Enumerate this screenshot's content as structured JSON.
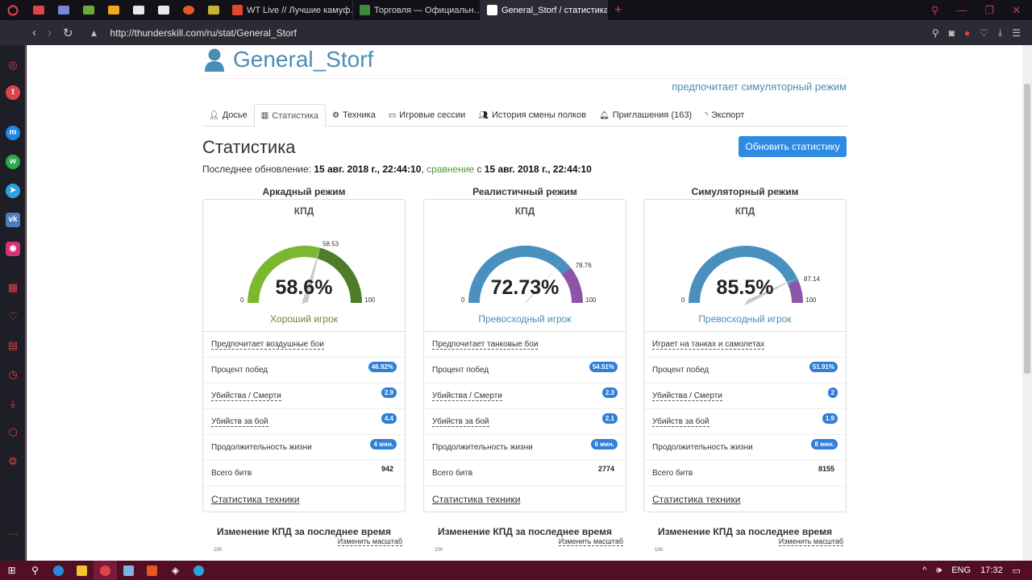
{
  "browser": {
    "tabs": [
      {
        "title": "WT Live // Лучшие камуф…",
        "color": "#e04a2c"
      },
      {
        "title": "Торговля — Официальн…",
        "color": "#3d8a3c"
      },
      {
        "title": "General_Storf / статистика",
        "color": "#ffffff"
      }
    ],
    "url": "http://thunderskill.com/ru/stat/General_Storf"
  },
  "profile": {
    "name": "General_Storf",
    "prefers": "предпочитает симуляторный режим"
  },
  "tabs": [
    {
      "label": "Досье",
      "icon": "user-icon"
    },
    {
      "label": "Статистика",
      "icon": "chart-icon"
    },
    {
      "label": "Техника",
      "icon": "gear-icon"
    },
    {
      "label": "Игровые сессии",
      "icon": "monitor-icon"
    },
    {
      "label": "История смены полков",
      "icon": "users-icon"
    },
    {
      "label": "Приглашения (163)",
      "icon": "bell-icon"
    },
    {
      "label": "Экспорт",
      "icon": "rss-icon"
    }
  ],
  "stats": {
    "title": "Статистика",
    "refresh_label": "Обновить статистику",
    "last_update_label": "Последнее обновление:",
    "last_update_value": "15 авг. 2018 г., 22:44:10",
    "compare_label": "сравнение",
    "compare_prefix": "с",
    "compare_value": "15 авг. 2018 г., 22:44:10",
    "kpd_label": "КПД",
    "row_labels": {
      "win": "Процент побед",
      "kd": "Убийства / Смерти",
      "kpb": "Убийств за бой",
      "life": "Продолжительность жизни",
      "battles": "Всего битв"
    },
    "vehicle_stats_label": "Статистика техники",
    "trend_title": "Изменение КПД за последнее время",
    "scale_label": "Изменить масштаб",
    "gauge_min": "0",
    "gauge_max": "100",
    "modes": [
      {
        "name": "Аркадный режим",
        "kpd": "58.6%",
        "kpd_value": 58.6,
        "marker": "58.53",
        "marker_value": 58.53,
        "rating": "Хороший игрок",
        "rating_color": "#5e8a3a",
        "gauge_colors": [
          "#7cb82f",
          "#4e7c29"
        ],
        "preference": "Предпочитает воздушные бои",
        "win": "46.92%",
        "kd": "2.9",
        "kpb": "4.4",
        "life": "4 мин.",
        "battles": "942"
      },
      {
        "name": "Реалистичный режим",
        "kpd": "72.73%",
        "kpd_value": 72.73,
        "marker": "78.76",
        "marker_value": 78.76,
        "rating": "Превосходный игрок",
        "rating_color": "#4a8db7",
        "gauge_colors": [
          "#4a90bf",
          "#8e54a8"
        ],
        "preference": "Предпочитает танковые бои",
        "win": "54.51%",
        "kd": "2.3",
        "kpb": "2.1",
        "life": "6 мин.",
        "battles": "2774"
      },
      {
        "name": "Симуляторный режим",
        "kpd": "85.5%",
        "kpd_value": 85.5,
        "marker": "87.14",
        "marker_value": 87.14,
        "rating": "Превосходный игрок",
        "rating_color": "#4a8db7",
        "gauge_colors": [
          "#4a90bf",
          "#8e54a8"
        ],
        "preference": "Играет на танках и самолетах",
        "win": "51.91%",
        "kd": "2",
        "kpb": "1.9",
        "life": "8 мин.",
        "battles": "8155"
      }
    ],
    "trend_axis_top": "100"
  },
  "taskbar": {
    "lang": "ENG",
    "time": "17:32"
  }
}
